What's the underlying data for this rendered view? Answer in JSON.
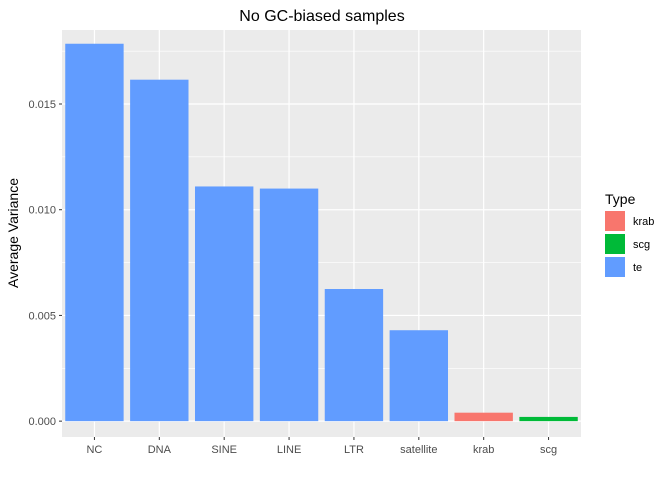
{
  "chart_data": {
    "type": "bar",
    "title": "No GC-biased samples",
    "xlabel": "",
    "ylabel": "Average Variance",
    "categories": [
      "NC",
      "DNA",
      "SINE",
      "LINE",
      "LTR",
      "satellite",
      "krab",
      "scg"
    ],
    "values": [
      0.01785,
      0.01615,
      0.0111,
      0.011,
      0.00625,
      0.0043,
      0.0004,
      0.0002
    ],
    "types": [
      "te",
      "te",
      "te",
      "te",
      "te",
      "te",
      "krab",
      "scg"
    ],
    "ylim": [
      -0.00075,
      0.0185
    ],
    "yticks": [
      0.0,
      0.005,
      0.01,
      0.015
    ],
    "ytick_labels": [
      "0.000",
      "0.005",
      "0.010",
      "0.015"
    ],
    "grid": true,
    "legend": {
      "title": "Type",
      "placement": "right",
      "entries": [
        {
          "name": "krab",
          "color": "#F8766D"
        },
        {
          "name": "scg",
          "color": "#00BA38"
        },
        {
          "name": "te",
          "color": "#619CFF"
        }
      ]
    },
    "panel_color": "#EBEBEB",
    "grid_color": "#FFFFFF"
  }
}
